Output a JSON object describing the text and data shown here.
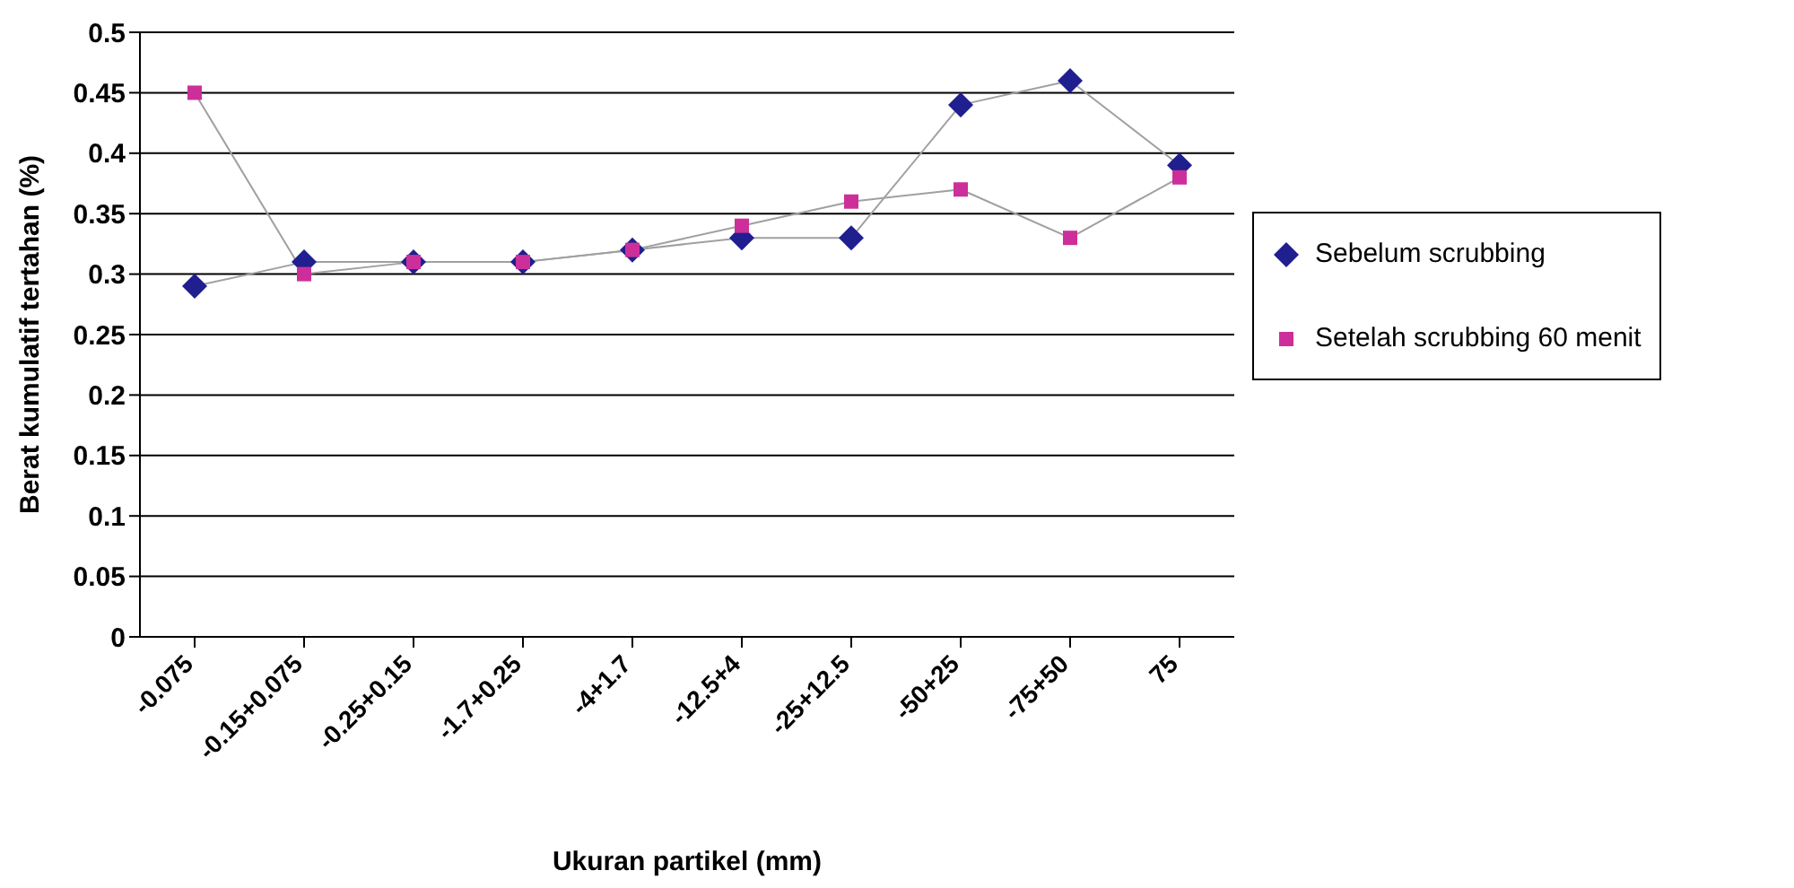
{
  "chart_data": {
    "type": "line",
    "xlabel": "Ukuran partikel (mm)",
    "ylabel": "Berat kumulatif tertahan (%)",
    "categories": [
      "-0.075",
      "-0.15+0.075",
      "-0.25+0.15",
      "-1.7+0.25",
      "-4+1.7",
      "-12.5+4",
      "-25+12.5",
      "-50+25",
      "-75+50",
      "75"
    ],
    "series": [
      {
        "name": "Sebelum scrubbing",
        "color": "#1f1f8f",
        "marker": "diamond",
        "values": [
          0.29,
          0.31,
          0.31,
          0.31,
          0.32,
          0.33,
          0.33,
          0.44,
          0.46,
          0.39
        ]
      },
      {
        "name": "Setelah scrubbing 60 menit",
        "color": "#cc2f9a",
        "marker": "square",
        "values": [
          0.45,
          0.3,
          0.31,
          0.31,
          0.32,
          0.34,
          0.36,
          0.37,
          0.33,
          0.38
        ]
      }
    ],
    "ylim": [
      0,
      0.5
    ],
    "yticks": [
      0,
      0.05,
      0.1,
      0.15,
      0.2,
      0.25,
      0.3,
      0.35,
      0.4,
      0.45,
      0.5
    ],
    "grid": "y",
    "legend": "right"
  }
}
